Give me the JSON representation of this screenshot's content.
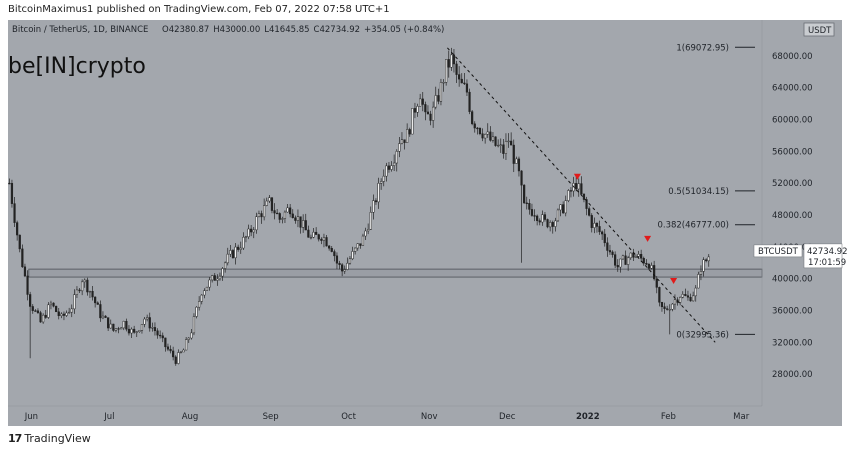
{
  "header": {
    "publish_text": "BitcoinMaximus1 published on TradingView.com, Feb 07, 2022 07:58 UTC+1"
  },
  "chart_data": {
    "type": "candlestick",
    "title": "Bitcoin / TetherUS, 1D, BINANCE",
    "ohlc": {
      "open_label": "O",
      "open": "42380.87",
      "high_label": "H",
      "high": "43000.00",
      "low_label": "L",
      "low": "41645.85",
      "close_label": "C",
      "close": "42734.92",
      "change": "+354.05 (+0.84%)"
    },
    "logo_text": "be[IN]crypto",
    "currency_badge": "USDT",
    "symbol_label": "BTCUSDT",
    "last_price": "42734.92",
    "countdown": "17:01:59",
    "ylim": [
      24000,
      72500
    ],
    "y_ticks": [
      28000,
      32000,
      36000,
      40000,
      44000,
      48000,
      52000,
      56000,
      60000,
      64000,
      68000
    ],
    "y_tick_labels": [
      "28000.00",
      "32000.00",
      "36000.00",
      "40000.00",
      "44000.00",
      "48000.00",
      "52000.00",
      "56000.00",
      "60000.00",
      "64000.00",
      "68000.00"
    ],
    "x_ticks": [
      {
        "label": "Jun",
        "day": 9
      },
      {
        "label": "Jul",
        "day": 39
      },
      {
        "label": "Aug",
        "day": 70
      },
      {
        "label": "Sep",
        "day": 101
      },
      {
        "label": "Oct",
        "day": 131
      },
      {
        "label": "Nov",
        "day": 162
      },
      {
        "label": "Dec",
        "day": 192
      },
      {
        "label": "2022",
        "day": 223
      },
      {
        "label": "Feb",
        "day": 254
      },
      {
        "label": "Mar",
        "day": 282
      }
    ],
    "fib_levels": [
      {
        "label": "1(69072.95)",
        "value": 69072.95
      },
      {
        "label": "0.5(51034.15)",
        "value": 51034.15
      },
      {
        "label": "0.382(46777.00)",
        "value": 46777.0
      },
      {
        "label": "0(32995.36)",
        "value": 32995.36
      }
    ],
    "support_zone": [
      40200,
      41200
    ],
    "trendline": [
      {
        "day": 169,
        "price": 69000
      },
      {
        "day": 272,
        "price": 32000
      }
    ],
    "arrows": [
      {
        "day": 219,
        "price": 52800
      },
      {
        "day": 246,
        "price": 45000
      },
      {
        "day": 256,
        "price": 39700
      }
    ],
    "path": [
      [
        0,
        52000
      ],
      [
        4,
        43500
      ],
      [
        8,
        37000
      ],
      [
        12,
        34500
      ],
      [
        16,
        36800
      ],
      [
        20,
        35000
      ],
      [
        24,
        36500
      ],
      [
        28,
        40000
      ],
      [
        31,
        38500
      ],
      [
        35,
        35500
      ],
      [
        40,
        33500
      ],
      [
        44,
        34500
      ],
      [
        48,
        33000
      ],
      [
        52,
        35000
      ],
      [
        56,
        33500
      ],
      [
        60,
        31500
      ],
      [
        64,
        29800
      ],
      [
        67,
        31000
      ],
      [
        70,
        33500
      ],
      [
        74,
        38500
      ],
      [
        77,
        39500
      ],
      [
        80,
        40500
      ],
      [
        84,
        42500
      ],
      [
        88,
        44000
      ],
      [
        92,
        45500
      ],
      [
        96,
        48000
      ],
      [
        100,
        49500
      ],
      [
        104,
        47500
      ],
      [
        108,
        49000
      ],
      [
        112,
        47000
      ],
      [
        116,
        45000
      ],
      [
        120,
        45500
      ],
      [
        124,
        44000
      ],
      [
        126,
        42000
      ],
      [
        128,
        41000
      ],
      [
        132,
        43000
      ],
      [
        136,
        45000
      ],
      [
        140,
        49000
      ],
      [
        144,
        53500
      ],
      [
        148,
        55500
      ],
      [
        150,
        57500
      ],
      [
        153,
        58000
      ],
      [
        156,
        61500
      ],
      [
        158,
        63500
      ],
      [
        160,
        60000
      ],
      [
        163,
        61000
      ],
      [
        166,
        64000
      ],
      [
        168,
        66500
      ],
      [
        170,
        67500
      ],
      [
        173,
        64500
      ],
      [
        176,
        63500
      ],
      [
        178,
        60000
      ],
      [
        182,
        58500
      ],
      [
        186,
        57000
      ],
      [
        190,
        56000
      ],
      [
        192,
        57500
      ],
      [
        196,
        53000
      ],
      [
        198,
        49000
      ],
      [
        202,
        48500
      ],
      [
        206,
        47000
      ],
      [
        210,
        47500
      ],
      [
        213,
        49000
      ],
      [
        216,
        51000
      ],
      [
        218,
        52000
      ],
      [
        221,
        49500
      ],
      [
        224,
        47000
      ],
      [
        228,
        45500
      ],
      [
        231,
        43500
      ],
      [
        234,
        41500
      ],
      [
        237,
        42500
      ],
      [
        240,
        43000
      ],
      [
        243,
        42500
      ],
      [
        246,
        42000
      ],
      [
        248,
        40000
      ],
      [
        250,
        36500
      ],
      [
        252,
        36000
      ],
      [
        255,
        37000
      ],
      [
        258,
        38000
      ],
      [
        261,
        37500
      ],
      [
        264,
        38500
      ],
      [
        266,
        41500
      ],
      [
        269,
        42700
      ]
    ]
  }
}
